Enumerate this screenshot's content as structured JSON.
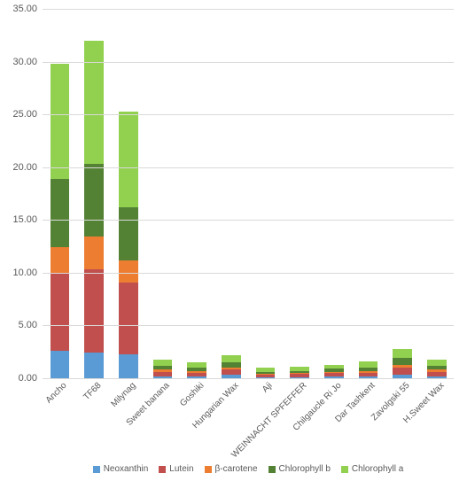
{
  "chart": {
    "type": "stacked-bar",
    "ylim": [
      0,
      35
    ],
    "ytick_step": 5,
    "ytick_format": ".2f",
    "background_color": "#ffffff",
    "grid_color": "#d9d9d9",
    "axis_color": "#bfbfbf",
    "text_color": "#595959",
    "label_fontsize": 10,
    "bar_width": 0.56,
    "series": [
      {
        "name": "Neoxanthin",
        "color": "#5b9bd5"
      },
      {
        "name": "Lutein",
        "color": "#c04f4d"
      },
      {
        "name": "β-carotene",
        "color": "#ed7d31"
      },
      {
        "name": "Chlorophyll b",
        "color": "#548235"
      },
      {
        "name": "Chlorophyll a",
        "color": "#92d050"
      }
    ],
    "categories": [
      "Ancho",
      "TF68",
      "Milynag",
      "Sweet banana",
      "Goshiki",
      "Hungarian Wax",
      "Aji",
      "WEINNACHT SPFEFFER",
      "Chilgaucle Ri Jo",
      "Dar Tashkent",
      "Zavolgski 55",
      "H.Sweet Wax"
    ],
    "values": [
      [
        2.6,
        7.4,
        2.4,
        6.5,
        10.9
      ],
      [
        2.4,
        7.9,
        3.1,
        6.9,
        11.7
      ],
      [
        2.3,
        6.8,
        2.1,
        5.0,
        9.1
      ],
      [
        0.2,
        0.4,
        0.2,
        0.4,
        0.6
      ],
      [
        0.2,
        0.3,
        0.2,
        0.3,
        0.5
      ],
      [
        0.3,
        0.5,
        0.2,
        0.5,
        0.7
      ],
      [
        0.1,
        0.2,
        0.1,
        0.2,
        0.4
      ],
      [
        0.1,
        0.3,
        0.1,
        0.2,
        0.4
      ],
      [
        0.2,
        0.3,
        0.1,
        0.3,
        0.4
      ],
      [
        0.2,
        0.3,
        0.2,
        0.3,
        0.6
      ],
      [
        0.3,
        0.7,
        0.3,
        0.6,
        0.9
      ],
      [
        0.2,
        0.4,
        0.2,
        0.4,
        0.6
      ]
    ]
  }
}
